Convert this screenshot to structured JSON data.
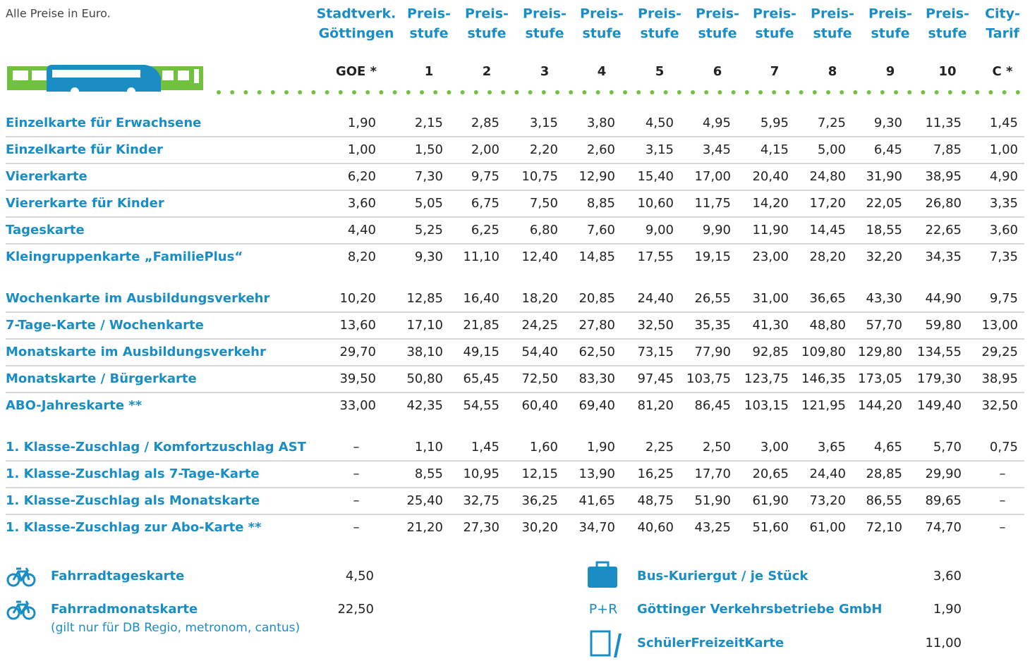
{
  "note": "Alle Preise in Euro.",
  "columns": [
    {
      "head": [
        "Stadtverk.",
        "Göttingen"
      ],
      "code": "GOE *"
    },
    {
      "head": [
        "Preis-",
        "stufe"
      ],
      "code": "1"
    },
    {
      "head": [
        "Preis-",
        "stufe"
      ],
      "code": "2"
    },
    {
      "head": [
        "Preis-",
        "stufe"
      ],
      "code": "3"
    },
    {
      "head": [
        "Preis-",
        "stufe"
      ],
      "code": "4"
    },
    {
      "head": [
        "Preis-",
        "stufe"
      ],
      "code": "5"
    },
    {
      "head": [
        "Preis-",
        "stufe"
      ],
      "code": "6"
    },
    {
      "head": [
        "Preis-",
        "stufe"
      ],
      "code": "7"
    },
    {
      "head": [
        "Preis-",
        "stufe"
      ],
      "code": "8"
    },
    {
      "head": [
        "Preis-",
        "stufe"
      ],
      "code": "9"
    },
    {
      "head": [
        "Preis-",
        "stufe"
      ],
      "code": "10"
    },
    {
      "head": [
        "City-",
        "Tarif"
      ],
      "code": "C *"
    }
  ],
  "groups": [
    [
      {
        "label": "Einzelkarte für Erwachsene",
        "prices": [
          "1,90",
          "2,15",
          "2,85",
          "3,15",
          "3,80",
          "4,50",
          "4,95",
          "5,95",
          "7,25",
          "9,30",
          "11,35",
          "1,45"
        ]
      },
      {
        "label": "Einzelkarte für Kinder",
        "prices": [
          "1,00",
          "1,50",
          "2,00",
          "2,20",
          "2,60",
          "3,15",
          "3,45",
          "4,15",
          "5,00",
          "6,45",
          "7,85",
          "1,00"
        ]
      },
      {
        "label": "Viererkarte",
        "prices": [
          "6,20",
          "7,30",
          "9,75",
          "10,75",
          "12,90",
          "15,40",
          "17,00",
          "20,40",
          "24,80",
          "31,90",
          "38,95",
          "4,90"
        ]
      },
      {
        "label": "Viererkarte für Kinder",
        "prices": [
          "3,60",
          "5,05",
          "6,75",
          "7,50",
          "8,85",
          "10,60",
          "11,75",
          "14,20",
          "17,20",
          "22,05",
          "26,80",
          "3,35"
        ]
      },
      {
        "label": "Tageskarte",
        "prices": [
          "4,40",
          "5,25",
          "6,25",
          "6,80",
          "7,60",
          "9,00",
          "9,90",
          "11,90",
          "14,45",
          "18,55",
          "22,65",
          "3,60"
        ]
      },
      {
        "label": "Kleingruppenkarte „FamiliePlus“",
        "prices": [
          "8,20",
          "9,30",
          "11,10",
          "12,40",
          "14,85",
          "17,55",
          "19,15",
          "23,00",
          "28,20",
          "32,20",
          "34,35",
          "7,35"
        ]
      }
    ],
    [
      {
        "label": "Wochenkarte im Ausbildungsverkehr",
        "prices": [
          "10,20",
          "12,85",
          "16,40",
          "18,20",
          "20,85",
          "24,40",
          "26,55",
          "31,00",
          "36,65",
          "43,30",
          "44,90",
          "9,75"
        ]
      },
      {
        "label": "7-Tage-Karte / Wochenkarte",
        "prices": [
          "13,60",
          "17,10",
          "21,85",
          "24,25",
          "27,80",
          "32,50",
          "35,35",
          "41,30",
          "48,80",
          "57,70",
          "59,80",
          "13,00"
        ]
      },
      {
        "label": "Monatskarte im Ausbildungsverkehr",
        "prices": [
          "29,70",
          "38,10",
          "49,15",
          "54,40",
          "62,50",
          "73,15",
          "77,90",
          "92,85",
          "109,80",
          "129,80",
          "134,55",
          "29,25"
        ]
      },
      {
        "label": "Monatskarte / Bürgerkarte",
        "prices": [
          "39,50",
          "50,80",
          "65,45",
          "72,50",
          "83,30",
          "97,45",
          "103,75",
          "123,75",
          "146,35",
          "173,05",
          "179,30",
          "38,95"
        ]
      },
      {
        "label": "ABO-Jahreskarte **",
        "prices": [
          "33,00",
          "42,35",
          "54,55",
          "60,40",
          "69,40",
          "81,20",
          "86,45",
          "103,15",
          "121,95",
          "144,20",
          "149,40",
          "32,50"
        ]
      }
    ],
    [
      {
        "label": "1. Klasse-Zuschlag / Komfortzuschlag AST",
        "prices": [
          "–",
          "1,10",
          "1,45",
          "1,60",
          "1,90",
          "2,25",
          "2,50",
          "3,00",
          "3,65",
          "4,65",
          "5,70",
          "0,75"
        ]
      },
      {
        "label": "1. Klasse-Zuschlag als 7-Tage-Karte",
        "prices": [
          "–",
          "8,55",
          "10,95",
          "12,15",
          "13,90",
          "16,25",
          "17,70",
          "20,65",
          "24,40",
          "28,85",
          "29,90",
          "–"
        ]
      },
      {
        "label": "1. Klasse-Zuschlag als Monatskarte",
        "prices": [
          "–",
          "25,40",
          "32,75",
          "36,25",
          "41,65",
          "48,75",
          "51,90",
          "61,90",
          "73,20",
          "86,55",
          "89,65",
          "–"
        ]
      },
      {
        "label": "1. Klasse-Zuschlag zur Abo-Karte **",
        "prices": [
          "–",
          "21,20",
          "27,30",
          "30,20",
          "34,70",
          "40,60",
          "43,25",
          "51,60",
          "61,00",
          "72,10",
          "74,70",
          "–"
        ]
      }
    ]
  ],
  "extras_left": [
    {
      "label": "Fahrradtageskarte",
      "price": "4,50"
    },
    {
      "label": "Fahrradmonatskarte",
      "price": "22,50",
      "note": "(gilt nur für DB Regio, metronom, cantus)"
    }
  ],
  "extras_right": [
    {
      "label": "Bus-Kuriergut / je Stück",
      "price": "3,60"
    },
    {
      "icon_text": "P+R",
      "label": "Göttinger Verkehrsbetriebe GmbH",
      "price": "1,90"
    },
    {
      "label": "SchülerFreizeitKarte",
      "price": "11,00"
    }
  ]
}
